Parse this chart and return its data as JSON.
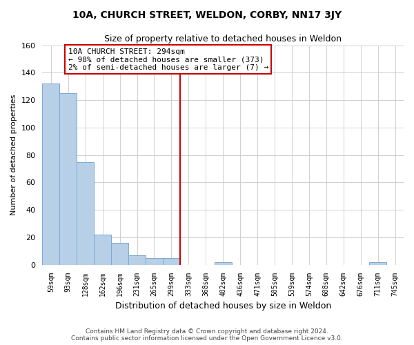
{
  "title": "10A, CHURCH STREET, WELDON, CORBY, NN17 3JY",
  "subtitle": "Size of property relative to detached houses in Weldon",
  "xlabel": "Distribution of detached houses by size in Weldon",
  "ylabel": "Number of detached properties",
  "bar_labels": [
    "59sqm",
    "93sqm",
    "128sqm",
    "162sqm",
    "196sqm",
    "231sqm",
    "265sqm",
    "299sqm",
    "333sqm",
    "368sqm",
    "402sqm",
    "436sqm",
    "471sqm",
    "505sqm",
    "539sqm",
    "574sqm",
    "608sqm",
    "642sqm",
    "676sqm",
    "711sqm",
    "745sqm"
  ],
  "bar_heights": [
    132,
    125,
    75,
    22,
    16,
    7,
    5,
    5,
    0,
    0,
    2,
    0,
    0,
    0,
    0,
    0,
    0,
    0,
    0,
    2,
    0
  ],
  "bar_color": "#b8cfe8",
  "bar_edge_color": "#7aaad0",
  "highlight_bar_index": 7,
  "vline_color": "#cc0000",
  "ylim": [
    0,
    160
  ],
  "yticks": [
    0,
    20,
    40,
    60,
    80,
    100,
    120,
    140,
    160
  ],
  "annotation_text": "10A CHURCH STREET: 294sqm\n← 98% of detached houses are smaller (373)\n2% of semi-detached houses are larger (7) →",
  "annotation_box_color": "#ffffff",
  "annotation_box_edgecolor": "#cc0000",
  "footer_line1": "Contains HM Land Registry data © Crown copyright and database right 2024.",
  "footer_line2": "Contains public sector information licensed under the Open Government Licence v3.0.",
  "background_color": "#ffffff",
  "grid_color": "#d0d0d0"
}
